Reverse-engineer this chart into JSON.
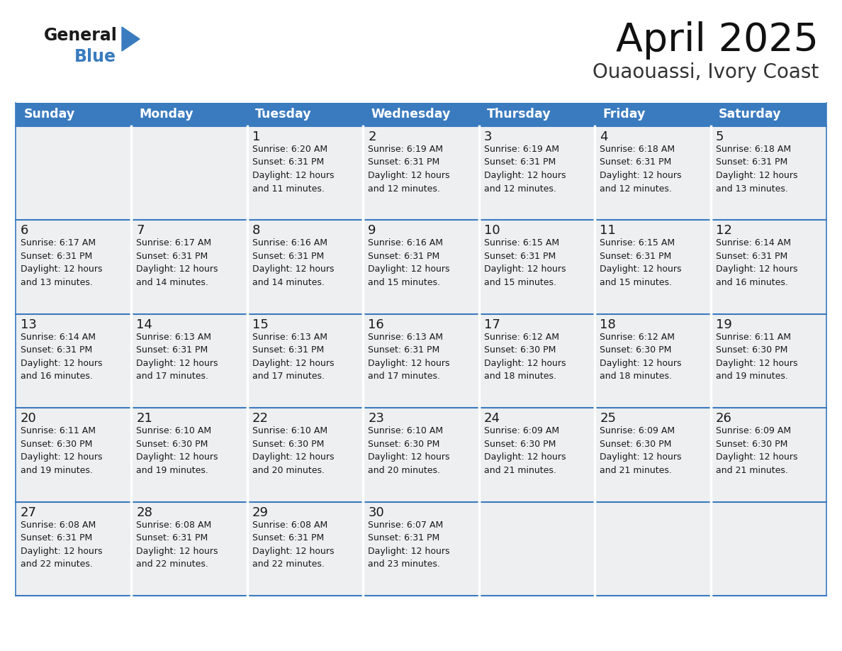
{
  "title": "April 2025",
  "subtitle": "Ouaouassi, Ivory Coast",
  "header_color": "#3a7bbf",
  "header_text_color": "#ffffff",
  "cell_bg_color": "#eeeff1",
  "border_color": "#3a7bbf",
  "text_color": "#222222",
  "days_of_week": [
    "Sunday",
    "Monday",
    "Tuesday",
    "Wednesday",
    "Thursday",
    "Friday",
    "Saturday"
  ],
  "logo_general_color": "#1a1a1a",
  "logo_blue_color": "#3a7bbf",
  "logo_triangle_color": "#3a7bbf",
  "weeks": [
    [
      {
        "day": "",
        "info": ""
      },
      {
        "day": "",
        "info": ""
      },
      {
        "day": "1",
        "info": "Sunrise: 6:20 AM\nSunset: 6:31 PM\nDaylight: 12 hours\nand 11 minutes."
      },
      {
        "day": "2",
        "info": "Sunrise: 6:19 AM\nSunset: 6:31 PM\nDaylight: 12 hours\nand 12 minutes."
      },
      {
        "day": "3",
        "info": "Sunrise: 6:19 AM\nSunset: 6:31 PM\nDaylight: 12 hours\nand 12 minutes."
      },
      {
        "day": "4",
        "info": "Sunrise: 6:18 AM\nSunset: 6:31 PM\nDaylight: 12 hours\nand 12 minutes."
      },
      {
        "day": "5",
        "info": "Sunrise: 6:18 AM\nSunset: 6:31 PM\nDaylight: 12 hours\nand 13 minutes."
      }
    ],
    [
      {
        "day": "6",
        "info": "Sunrise: 6:17 AM\nSunset: 6:31 PM\nDaylight: 12 hours\nand 13 minutes."
      },
      {
        "day": "7",
        "info": "Sunrise: 6:17 AM\nSunset: 6:31 PM\nDaylight: 12 hours\nand 14 minutes."
      },
      {
        "day": "8",
        "info": "Sunrise: 6:16 AM\nSunset: 6:31 PM\nDaylight: 12 hours\nand 14 minutes."
      },
      {
        "day": "9",
        "info": "Sunrise: 6:16 AM\nSunset: 6:31 PM\nDaylight: 12 hours\nand 15 minutes."
      },
      {
        "day": "10",
        "info": "Sunrise: 6:15 AM\nSunset: 6:31 PM\nDaylight: 12 hours\nand 15 minutes."
      },
      {
        "day": "11",
        "info": "Sunrise: 6:15 AM\nSunset: 6:31 PM\nDaylight: 12 hours\nand 15 minutes."
      },
      {
        "day": "12",
        "info": "Sunrise: 6:14 AM\nSunset: 6:31 PM\nDaylight: 12 hours\nand 16 minutes."
      }
    ],
    [
      {
        "day": "13",
        "info": "Sunrise: 6:14 AM\nSunset: 6:31 PM\nDaylight: 12 hours\nand 16 minutes."
      },
      {
        "day": "14",
        "info": "Sunrise: 6:13 AM\nSunset: 6:31 PM\nDaylight: 12 hours\nand 17 minutes."
      },
      {
        "day": "15",
        "info": "Sunrise: 6:13 AM\nSunset: 6:31 PM\nDaylight: 12 hours\nand 17 minutes."
      },
      {
        "day": "16",
        "info": "Sunrise: 6:13 AM\nSunset: 6:31 PM\nDaylight: 12 hours\nand 17 minutes."
      },
      {
        "day": "17",
        "info": "Sunrise: 6:12 AM\nSunset: 6:30 PM\nDaylight: 12 hours\nand 18 minutes."
      },
      {
        "day": "18",
        "info": "Sunrise: 6:12 AM\nSunset: 6:30 PM\nDaylight: 12 hours\nand 18 minutes."
      },
      {
        "day": "19",
        "info": "Sunrise: 6:11 AM\nSunset: 6:30 PM\nDaylight: 12 hours\nand 19 minutes."
      }
    ],
    [
      {
        "day": "20",
        "info": "Sunrise: 6:11 AM\nSunset: 6:30 PM\nDaylight: 12 hours\nand 19 minutes."
      },
      {
        "day": "21",
        "info": "Sunrise: 6:10 AM\nSunset: 6:30 PM\nDaylight: 12 hours\nand 19 minutes."
      },
      {
        "day": "22",
        "info": "Sunrise: 6:10 AM\nSunset: 6:30 PM\nDaylight: 12 hours\nand 20 minutes."
      },
      {
        "day": "23",
        "info": "Sunrise: 6:10 AM\nSunset: 6:30 PM\nDaylight: 12 hours\nand 20 minutes."
      },
      {
        "day": "24",
        "info": "Sunrise: 6:09 AM\nSunset: 6:30 PM\nDaylight: 12 hours\nand 21 minutes."
      },
      {
        "day": "25",
        "info": "Sunrise: 6:09 AM\nSunset: 6:30 PM\nDaylight: 12 hours\nand 21 minutes."
      },
      {
        "day": "26",
        "info": "Sunrise: 6:09 AM\nSunset: 6:30 PM\nDaylight: 12 hours\nand 21 minutes."
      }
    ],
    [
      {
        "day": "27",
        "info": "Sunrise: 6:08 AM\nSunset: 6:31 PM\nDaylight: 12 hours\nand 22 minutes."
      },
      {
        "day": "28",
        "info": "Sunrise: 6:08 AM\nSunset: 6:31 PM\nDaylight: 12 hours\nand 22 minutes."
      },
      {
        "day": "29",
        "info": "Sunrise: 6:08 AM\nSunset: 6:31 PM\nDaylight: 12 hours\nand 22 minutes."
      },
      {
        "day": "30",
        "info": "Sunrise: 6:07 AM\nSunset: 6:31 PM\nDaylight: 12 hours\nand 23 minutes."
      },
      {
        "day": "",
        "info": ""
      },
      {
        "day": "",
        "info": ""
      },
      {
        "day": "",
        "info": ""
      }
    ]
  ]
}
